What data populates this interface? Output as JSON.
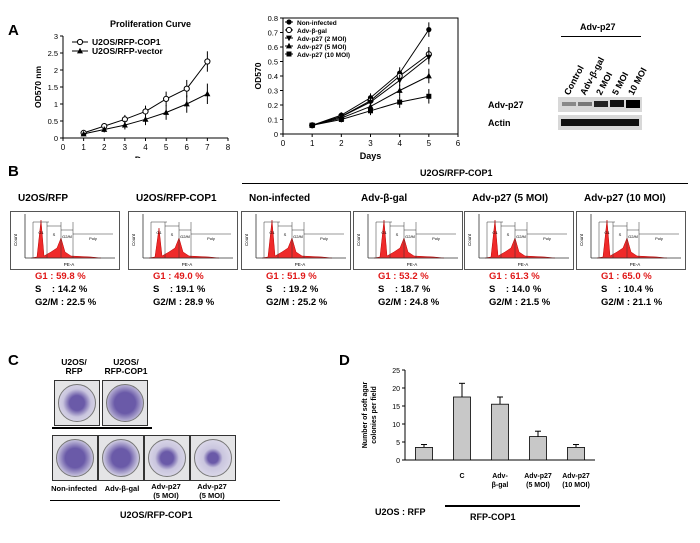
{
  "panels": {
    "a": "A",
    "b": "B",
    "c": "C",
    "d": "D"
  },
  "colors": {
    "red": "#e01818",
    "facs_fill": "#ef2a2a",
    "bar_fill": "#c8c8c8",
    "dish_stain": "#6a5aa8"
  },
  "chart_data": [
    {
      "type": "line",
      "title": "Proliferation Curve",
      "xlabel": "Days",
      "ylabel": "OD570 nm",
      "xlim": [
        0,
        8
      ],
      "ylim": [
        0,
        3
      ],
      "xticks": [
        "0",
        "1",
        "2",
        "3",
        "4",
        "5",
        "6",
        "7",
        "8"
      ],
      "yticks": [
        "0",
        "0.5",
        "1",
        "1.5",
        "2",
        "2.5",
        "3"
      ],
      "legend_position": "top-left",
      "x": [
        1,
        2,
        3,
        4,
        5,
        6,
        7
      ],
      "series": [
        {
          "name": "U2OS/RFP-COP1",
          "marker": "open-circle",
          "values": [
            0.15,
            0.35,
            0.55,
            0.78,
            1.15,
            1.45,
            2.25
          ]
        },
        {
          "name": "U2OS/RFP-vector",
          "marker": "filled-triangle",
          "values": [
            0.12,
            0.25,
            0.38,
            0.55,
            0.75,
            1.0,
            1.3
          ]
        }
      ]
    },
    {
      "type": "line",
      "xlabel": "Days",
      "ylabel": "OD570",
      "xlim": [
        0,
        6
      ],
      "ylim": [
        0,
        0.8
      ],
      "xticks": [
        "0",
        "1",
        "2",
        "3",
        "4",
        "5",
        "6"
      ],
      "yticks": [
        "0",
        "0.1",
        "0.2",
        "0.3",
        "0.4",
        "0.5",
        "0.6",
        "0.7",
        "0.8"
      ],
      "legend_position": "top-left",
      "x": [
        1,
        2,
        3,
        4,
        5
      ],
      "series": [
        {
          "name": "Non-infected",
          "marker": "filled-circle",
          "values": [
            0.06,
            0.13,
            0.25,
            0.42,
            0.72
          ]
        },
        {
          "name": "Adv-β-gal",
          "marker": "open-circle",
          "values": [
            0.06,
            0.12,
            0.23,
            0.4,
            0.55
          ]
        },
        {
          "name": "Adv-p27 (2 MOI)",
          "marker": "down-triangle",
          "values": [
            0.06,
            0.12,
            0.22,
            0.37,
            0.53
          ]
        },
        {
          "name": "Adv-p27 (5 MOI)",
          "marker": "up-triangle",
          "values": [
            0.06,
            0.11,
            0.19,
            0.3,
            0.4
          ]
        },
        {
          "name": "Adv-p27 (10 MOI)",
          "marker": "filled-square",
          "values": [
            0.06,
            0.1,
            0.16,
            0.22,
            0.26
          ]
        }
      ]
    },
    {
      "type": "bar",
      "ylabel": "Number of soft agar colonies per field",
      "ylim": [
        0,
        25
      ],
      "yticks": [
        "0",
        "5",
        "10",
        "15",
        "20",
        "25"
      ],
      "categories": [
        "",
        "C",
        "Adv-\nβ-gal",
        "Adv-p27\n(5 MOI)",
        "Adv-p27\n(10 MOI)"
      ],
      "values": [
        3.5,
        17.5,
        15.5,
        6.5,
        3.5
      ],
      "errors": [
        0.8,
        3.8,
        2.0,
        1.5,
        0.8
      ]
    }
  ],
  "western": {
    "header": "Adv-p27",
    "lanes": [
      "Control",
      "Adv-β-gal",
      "2 MOI",
      "5 MOI",
      "10 MOI"
    ],
    "rows": [
      "Adv-p27",
      "Actin"
    ]
  },
  "facs": {
    "group_label": "U2OS/RFP-COP1",
    "xaxis": "PE-A",
    "yaxis": "Count",
    "gates": [
      "G1",
      "S",
      "G2/M",
      "Poly"
    ],
    "samples": [
      {
        "title": "U2OS/RFP",
        "g1": "G1 : 59.8 %",
        "s": "S    : 14.2 %",
        "g2m": "G2/M : 22.5 %"
      },
      {
        "title": "U2OS/RFP-COP1",
        "g1": "G1 : 49.0 %",
        "s": "S    : 19.1 %",
        "g2m": "G2/M : 28.9 %"
      },
      {
        "title": "Non-infected",
        "g1": "G1 : 51.9 %",
        "s": "S    : 19.2 %",
        "g2m": "G2/M : 25.2 %"
      },
      {
        "title": "Adv-β-gal",
        "g1": "G1 : 53.2 %",
        "s": "S    : 18.7 %",
        "g2m": "G2/M : 24.8 %"
      },
      {
        "title": "Adv-p27 (5 MOI)",
        "g1": "G1 : 61.3 %",
        "s": "S    : 14.0 %",
        "g2m": "G2/M : 21.5 %"
      },
      {
        "title": "Adv-p27 (10 MOI)",
        "g1": "G1 : 65.0 %",
        "s": "S    : 10.4 %",
        "g2m": "G2/M : 21.1 %"
      }
    ]
  },
  "colony": {
    "top_labels": [
      "U2OS/\nRFP",
      "U2OS/\nRFP-COP1"
    ],
    "bottom_labels": [
      "Non-infected",
      "Adv-β-gal",
      "Adv-p27\n(5 MOI)",
      "Adv-p27\n(5 MOI)"
    ],
    "group_label": "U2OS/RFP-COP1"
  },
  "softagar": {
    "left_label": "U2OS : RFP",
    "group_label": "RFP-COP1"
  }
}
